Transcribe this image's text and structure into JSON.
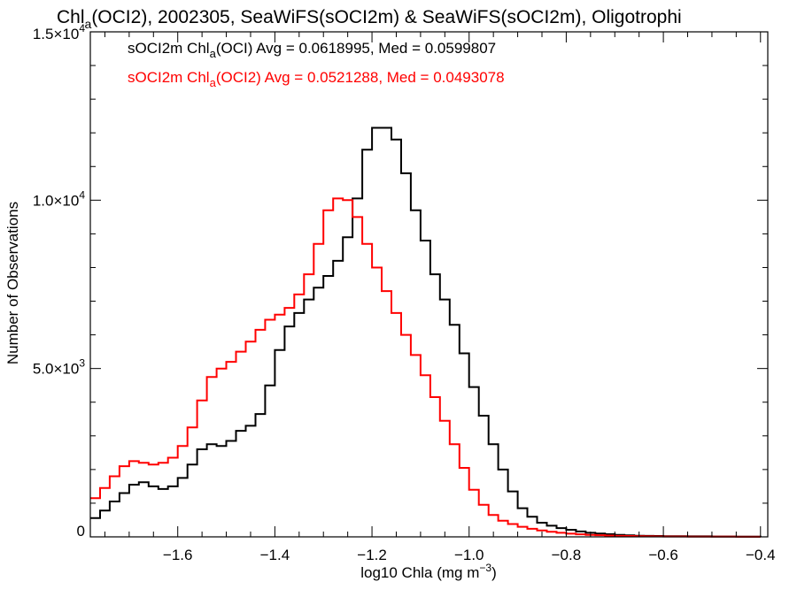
{
  "chart_data": {
    "type": "line",
    "title": {
      "pre": "Chl",
      "sub": "a",
      "post": "(OCI2), 2002305, SeaWiFS(sOCI2m) & SeaWiFS(sOCI2m), Oligotrophi"
    },
    "xlabel": {
      "main": "log10 Chla (mg m",
      "sup": "−3",
      "close": ")"
    },
    "ylabel": "Number of Observations",
    "xlim": [
      -1.78,
      -0.385
    ],
    "ylim": [
      0,
      15000
    ],
    "x_ticks": [
      -1.6,
      -1.4,
      -1.2,
      -1.0,
      -0.8,
      -0.6,
      -0.4
    ],
    "x_tick_labels": [
      "−1.6",
      "−1.4",
      "−1.2",
      "−1.0",
      "−0.8",
      "−0.6",
      "−0.4"
    ],
    "y_ticks": [
      {
        "value": 0,
        "mant": "0",
        "exp": ""
      },
      {
        "value": 5000,
        "mant": "5.0×10",
        "exp": "3"
      },
      {
        "value": 10000,
        "mant": "1.0×10",
        "exp": "4"
      },
      {
        "value": 15000,
        "mant": "1.5×10",
        "exp": "4"
      }
    ],
    "grid": false,
    "legend_position": "top-left",
    "series": [
      {
        "color": "#000000",
        "legend": {
          "pre": "sOCI2m Chl",
          "sub": "a",
          "post": "(OCI) Avg = 0.0618995, Med = 0.0599807"
        },
        "points": [
          [
            -1.78,
            560
          ],
          [
            -1.76,
            780
          ],
          [
            -1.74,
            1050
          ],
          [
            -1.72,
            1300
          ],
          [
            -1.7,
            1550
          ],
          [
            -1.68,
            1620
          ],
          [
            -1.66,
            1500
          ],
          [
            -1.64,
            1420
          ],
          [
            -1.62,
            1500
          ],
          [
            -1.6,
            1750
          ],
          [
            -1.58,
            2150
          ],
          [
            -1.56,
            2600
          ],
          [
            -1.54,
            2750
          ],
          [
            -1.52,
            2700
          ],
          [
            -1.5,
            2850
          ],
          [
            -1.48,
            3150
          ],
          [
            -1.46,
            3300
          ],
          [
            -1.44,
            3650
          ],
          [
            -1.42,
            4500
          ],
          [
            -1.4,
            5550
          ],
          [
            -1.38,
            6250
          ],
          [
            -1.36,
            6650
          ],
          [
            -1.34,
            7050
          ],
          [
            -1.32,
            7400
          ],
          [
            -1.3,
            7750
          ],
          [
            -1.28,
            8200
          ],
          [
            -1.26,
            8900
          ],
          [
            -1.24,
            10050
          ],
          [
            -1.22,
            11500
          ],
          [
            -1.2,
            12150
          ],
          [
            -1.18,
            12150
          ],
          [
            -1.16,
            11800
          ],
          [
            -1.14,
            10800
          ],
          [
            -1.12,
            9700
          ],
          [
            -1.1,
            8800
          ],
          [
            -1.08,
            7800
          ],
          [
            -1.06,
            7050
          ],
          [
            -1.04,
            6300
          ],
          [
            -1.02,
            5450
          ],
          [
            -1.0,
            4450
          ],
          [
            -0.98,
            3600
          ],
          [
            -0.96,
            2750
          ],
          [
            -0.94,
            2000
          ],
          [
            -0.92,
            1350
          ],
          [
            -0.9,
            850
          ],
          [
            -0.88,
            600
          ],
          [
            -0.86,
            420
          ],
          [
            -0.84,
            330
          ],
          [
            -0.82,
            260
          ],
          [
            -0.8,
            210
          ],
          [
            -0.78,
            160
          ],
          [
            -0.76,
            120
          ],
          [
            -0.74,
            100
          ],
          [
            -0.72,
            80
          ],
          [
            -0.7,
            60
          ],
          [
            -0.68,
            45
          ],
          [
            -0.66,
            35
          ],
          [
            -0.64,
            30
          ],
          [
            -0.62,
            25
          ],
          [
            -0.6,
            20
          ],
          [
            -0.55,
            15
          ],
          [
            -0.5,
            10
          ],
          [
            -0.45,
            8
          ],
          [
            -0.4,
            5
          ]
        ]
      },
      {
        "color": "#ff0000",
        "legend": {
          "pre": "sOCI2m Chl",
          "sub": "a",
          "post": "(OCI2) Avg = 0.0521288, Med = 0.0493078"
        },
        "points": [
          [
            -1.78,
            1150
          ],
          [
            -1.76,
            1450
          ],
          [
            -1.74,
            1800
          ],
          [
            -1.72,
            2100
          ],
          [
            -1.7,
            2250
          ],
          [
            -1.68,
            2200
          ],
          [
            -1.66,
            2150
          ],
          [
            -1.64,
            2200
          ],
          [
            -1.62,
            2350
          ],
          [
            -1.6,
            2700
          ],
          [
            -1.58,
            3250
          ],
          [
            -1.56,
            4050
          ],
          [
            -1.54,
            4750
          ],
          [
            -1.52,
            5000
          ],
          [
            -1.5,
            5200
          ],
          [
            -1.48,
            5500
          ],
          [
            -1.46,
            5800
          ],
          [
            -1.44,
            6150
          ],
          [
            -1.42,
            6450
          ],
          [
            -1.4,
            6600
          ],
          [
            -1.38,
            6800
          ],
          [
            -1.36,
            7200
          ],
          [
            -1.34,
            7800
          ],
          [
            -1.32,
            8700
          ],
          [
            -1.3,
            9700
          ],
          [
            -1.28,
            10050
          ],
          [
            -1.26,
            10000
          ],
          [
            -1.24,
            9500
          ],
          [
            -1.22,
            8700
          ],
          [
            -1.2,
            8000
          ],
          [
            -1.18,
            7300
          ],
          [
            -1.16,
            6650
          ],
          [
            -1.14,
            6000
          ],
          [
            -1.12,
            5400
          ],
          [
            -1.1,
            4800
          ],
          [
            -1.08,
            4150
          ],
          [
            -1.06,
            3450
          ],
          [
            -1.04,
            2750
          ],
          [
            -1.02,
            2050
          ],
          [
            -1.0,
            1400
          ],
          [
            -0.98,
            950
          ],
          [
            -0.96,
            650
          ],
          [
            -0.94,
            480
          ],
          [
            -0.92,
            380
          ],
          [
            -0.9,
            300
          ],
          [
            -0.88,
            240
          ],
          [
            -0.86,
            190
          ],
          [
            -0.84,
            150
          ],
          [
            -0.82,
            120
          ],
          [
            -0.8,
            95
          ],
          [
            -0.78,
            75
          ],
          [
            -0.76,
            60
          ],
          [
            -0.74,
            50
          ],
          [
            -0.72,
            40
          ],
          [
            -0.7,
            30
          ],
          [
            -0.68,
            25
          ],
          [
            -0.66,
            20
          ],
          [
            -0.64,
            15
          ],
          [
            -0.62,
            12
          ],
          [
            -0.6,
            10
          ],
          [
            -0.55,
            8
          ],
          [
            -0.5,
            5
          ],
          [
            -0.45,
            3
          ],
          [
            -0.4,
            2
          ]
        ]
      }
    ]
  }
}
